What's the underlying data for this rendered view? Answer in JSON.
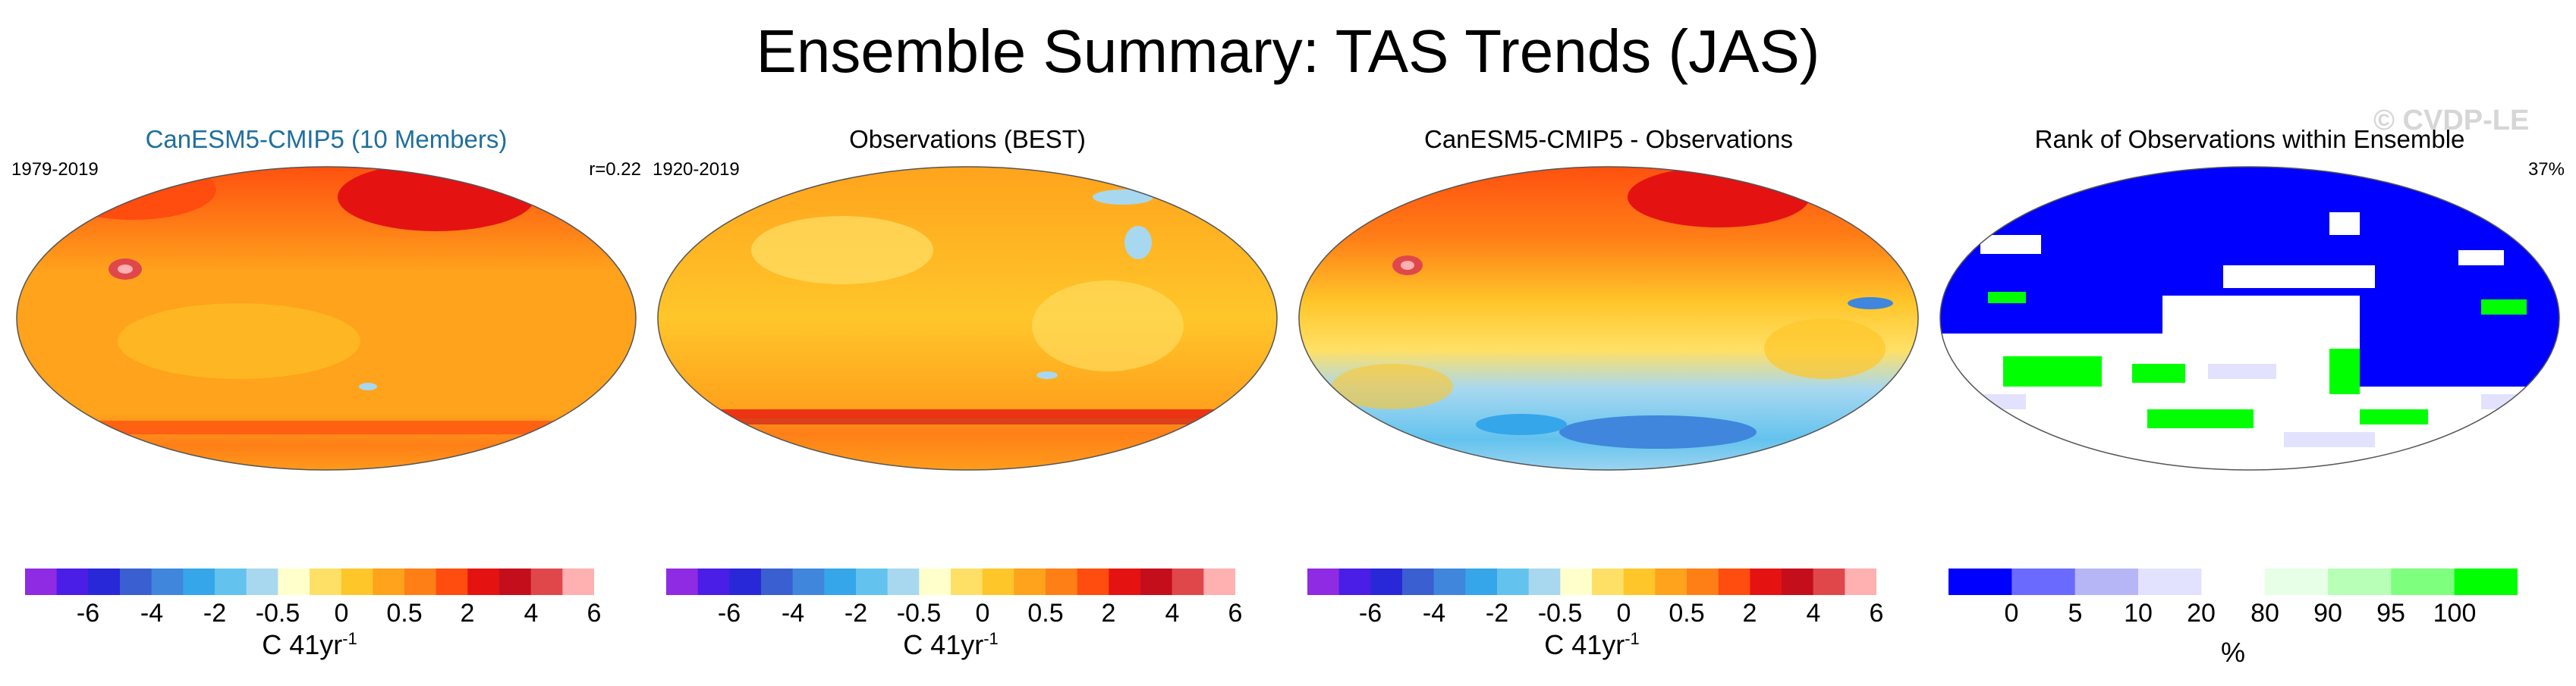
{
  "header": {
    "title": "Ensemble Summary: TAS Trends (JAS)",
    "watermark": "© CVDP-LE"
  },
  "panels": [
    {
      "title": "CanESM5-CMIP5 (10 Members)",
      "period": "1979-2019",
      "corner": "r=0.22"
    },
    {
      "title": "Observations (BEST)",
      "period": "1920-2019",
      "corner": ""
    },
    {
      "title": "CanESM5-CMIP5 - Observations",
      "period": "",
      "corner": ""
    },
    {
      "title": "Rank of Observations within Ensemble",
      "period": "",
      "corner": "37%"
    }
  ],
  "colorbar_tas": {
    "ticks": [
      "-6",
      "-4",
      "-2",
      "-0.5",
      "0",
      "0.5",
      "2",
      "4",
      "6"
    ],
    "unit": "C 41yr",
    "unit_exp": "-1",
    "colors": [
      "#8f2be2",
      "#4a1ee6",
      "#2828d8",
      "#3a5fd0",
      "#3f86dc",
      "#35a6ea",
      "#63c3ee",
      "#a8d8f0",
      "#ffffcc",
      "#ffe066",
      "#ffc62a",
      "#ffa21c",
      "#ff7f17",
      "#ff4c0f",
      "#e51212",
      "#c40e1c",
      "#e0474b",
      "#ffb0b0"
    ]
  },
  "colorbar_rank": {
    "ticks": [
      "0",
      "5",
      "10",
      "20",
      "80",
      "90",
      "95",
      "100"
    ],
    "unit": "%",
    "colors": [
      "#0000ff",
      "#6a6aff",
      "#b6b6f6",
      "#e2e2ff",
      "#ffffff",
      "#e6ffe6",
      "#b8ffb8",
      "#7eff7e",
      "#00ff00"
    ]
  },
  "chart_data": [
    {
      "type": "heatmap",
      "title": "CanESM5-CMIP5 (10 Members)",
      "period": "1979-2019",
      "correlation": 0.22,
      "colorbar_ticks": [
        -6,
        -4,
        -2,
        -0.5,
        0,
        0.5,
        2,
        4,
        6
      ],
      "units": "C 41yr-1",
      "pattern": "global warming, largest over northern high-latitude land (4 to 6), mostly 0.5 to 2 over oceans"
    },
    {
      "type": "heatmap",
      "title": "Observations (BEST)",
      "period": "1920-2019",
      "colorbar_ticks": [
        -6,
        -4,
        -2,
        -0.5,
        0,
        0.5,
        2,
        4,
        6
      ],
      "units": "C 41yr-1",
      "pattern": "mostly 0.5 to 2 warming, strong warming band near Antarctic coast, small cooling spots"
    },
    {
      "type": "heatmap",
      "title": "CanESM5-CMIP5 - Observations",
      "colorbar_ticks": [
        -6,
        -4,
        -2,
        -0.5,
        0,
        0.5,
        2,
        4,
        6
      ],
      "units": "C 41yr-1",
      "pattern": "model warmer in northern hemisphere, cooler than observations over Southern Ocean"
    },
    {
      "type": "heatmap",
      "title": "Rank of Observations within Ensemble",
      "summary_percent": 37,
      "colorbar_ticks": [
        0,
        5,
        10,
        20,
        80,
        90,
        95,
        100
      ],
      "units": "%",
      "pattern": "rank 0-5 over most of the northern and tropical regions, 95-100 patches in southern mid-latitudes"
    }
  ]
}
